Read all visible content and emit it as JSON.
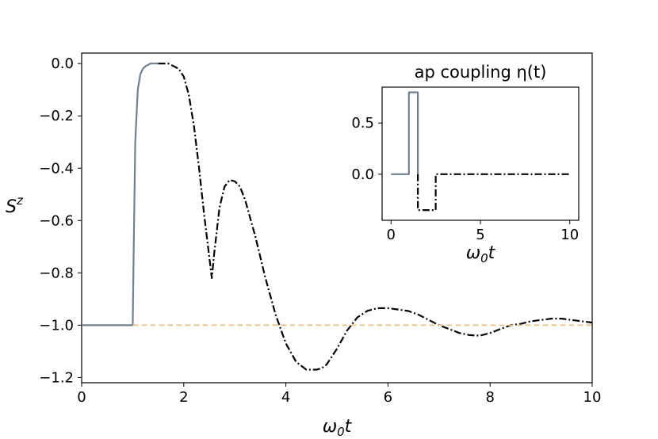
{
  "chart_data": [
    {
      "type": "line",
      "title": "",
      "xlabel": "ω0t",
      "ylabel": "Sz",
      "xlim": [
        0,
        10
      ],
      "ylim": [
        -1.22,
        0.04
      ],
      "xticks": [
        "0",
        "2",
        "4",
        "6",
        "8",
        "10"
      ],
      "yticks": [
        "0.0",
        "−0.2",
        "−0.4",
        "−0.6",
        "−0.8",
        "−1.0",
        "−1.2"
      ],
      "grid": false,
      "series": [
        {
          "style": "solid",
          "color": "#708090",
          "x": [
            0,
            1.0,
            1.02,
            1.05,
            1.1,
            1.15,
            1.2,
            1.25,
            1.3,
            1.35,
            1.4,
            1.45,
            1.5
          ],
          "y": [
            -1.0,
            -1.0,
            -0.7,
            -0.3,
            -0.1,
            -0.04,
            -0.02,
            -0.01,
            -0.005,
            0.0,
            0.0,
            0.0,
            0.0
          ]
        },
        {
          "style": "dashdot",
          "color": "#000000",
          "x": [
            1.5,
            1.7,
            1.9,
            2.0,
            2.1,
            2.2,
            2.3,
            2.4,
            2.5,
            2.55,
            2.6,
            2.7,
            2.8,
            2.9,
            3.0,
            3.1,
            3.2,
            3.4,
            3.6,
            3.8,
            4.0,
            4.2,
            4.4,
            4.6,
            4.7,
            4.8,
            5.0,
            5.2,
            5.4,
            5.6,
            5.8,
            6.0,
            6.2,
            6.3,
            6.4,
            6.6,
            6.8,
            7.0,
            7.2,
            7.4,
            7.6,
            7.8,
            7.9,
            8.0,
            8.2,
            8.4,
            8.6,
            8.8,
            9.0,
            9.2,
            9.4,
            9.6,
            9.8,
            10.0
          ],
          "y": [
            0.0,
            0.0,
            -0.02,
            -0.05,
            -0.12,
            -0.24,
            -0.4,
            -0.58,
            -0.74,
            -0.82,
            -0.72,
            -0.55,
            -0.47,
            -0.445,
            -0.45,
            -0.47,
            -0.52,
            -0.66,
            -0.82,
            -0.96,
            -1.07,
            -1.14,
            -1.17,
            -1.17,
            -1.165,
            -1.15,
            -1.09,
            -1.02,
            -0.97,
            -0.945,
            -0.935,
            -0.935,
            -0.94,
            -0.943,
            -0.946,
            -0.96,
            -0.98,
            -1.0,
            -1.015,
            -1.03,
            -1.038,
            -1.04,
            -1.035,
            -1.03,
            -1.015,
            -1.0,
            -0.995,
            -0.985,
            -0.98,
            -0.975,
            -0.975,
            -0.98,
            -0.985,
            -0.99
          ]
        },
        {
          "style": "dashed",
          "color": "#E8C18A",
          "x": [
            1.0,
            10.0
          ],
          "y": [
            -1.0,
            -1.0
          ]
        }
      ]
    },
    {
      "type": "line",
      "title": "ap coupling η(t)",
      "xlabel": "ω0t",
      "ylabel": "",
      "xlim": [
        -0.5,
        10.5
      ],
      "ylim": [
        -0.45,
        0.85
      ],
      "xticks": [
        "0",
        "5",
        "10"
      ],
      "yticks": [
        "0.5",
        "0.0"
      ],
      "grid": false,
      "series": [
        {
          "style": "solid",
          "color": "#708090",
          "x": [
            0,
            1.0,
            1.0,
            1.5,
            1.5
          ],
          "y": [
            0,
            0,
            0.8,
            0.8,
            0
          ]
        },
        {
          "style": "dashdot",
          "color": "#000000",
          "x": [
            1.5,
            1.5,
            2.5,
            2.5,
            10.0
          ],
          "y": [
            0,
            -0.35,
            -0.35,
            0,
            0
          ]
        }
      ]
    }
  ]
}
